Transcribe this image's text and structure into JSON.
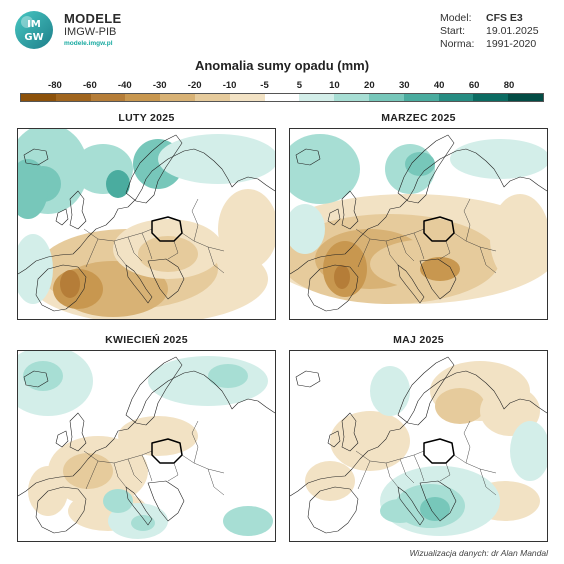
{
  "brand": {
    "logo_text": "IMGW",
    "title": "MODELE",
    "subtitle": "IMGW-PIB",
    "url": "modele.imgw.pl"
  },
  "meta": {
    "model_label": "Model:",
    "model_value": "CFS E3",
    "start_label": "Start:",
    "start_value": "19.01.2025",
    "norm_label": "Norma:",
    "norm_value": "1991-2020"
  },
  "legend": {
    "title": "Anomalia sumy opadu (mm)",
    "ticks": [
      "-80",
      "-60",
      "-40",
      "-30",
      "-20",
      "-10",
      "-5",
      "5",
      "10",
      "20",
      "30",
      "40",
      "60",
      "80"
    ],
    "colors": [
      "#8c510a",
      "#a0651e",
      "#b57d38",
      "#c8974f",
      "#d8b275",
      "#e6cb9c",
      "#f2e2c4",
      "#ffffff",
      "#d3eee9",
      "#a7ded4",
      "#77c7ba",
      "#4aac9f",
      "#268c82",
      "#0b6b62",
      "#034c45"
    ]
  },
  "panels": [
    {
      "title": "LUTY 2025"
    },
    {
      "title": "MARZEC 2025"
    },
    {
      "title": "KWIECIEŃ 2025"
    },
    {
      "title": "MAJ 2025"
    }
  ],
  "credit": "Wizualizacja danych: dr Alan Mandal"
}
